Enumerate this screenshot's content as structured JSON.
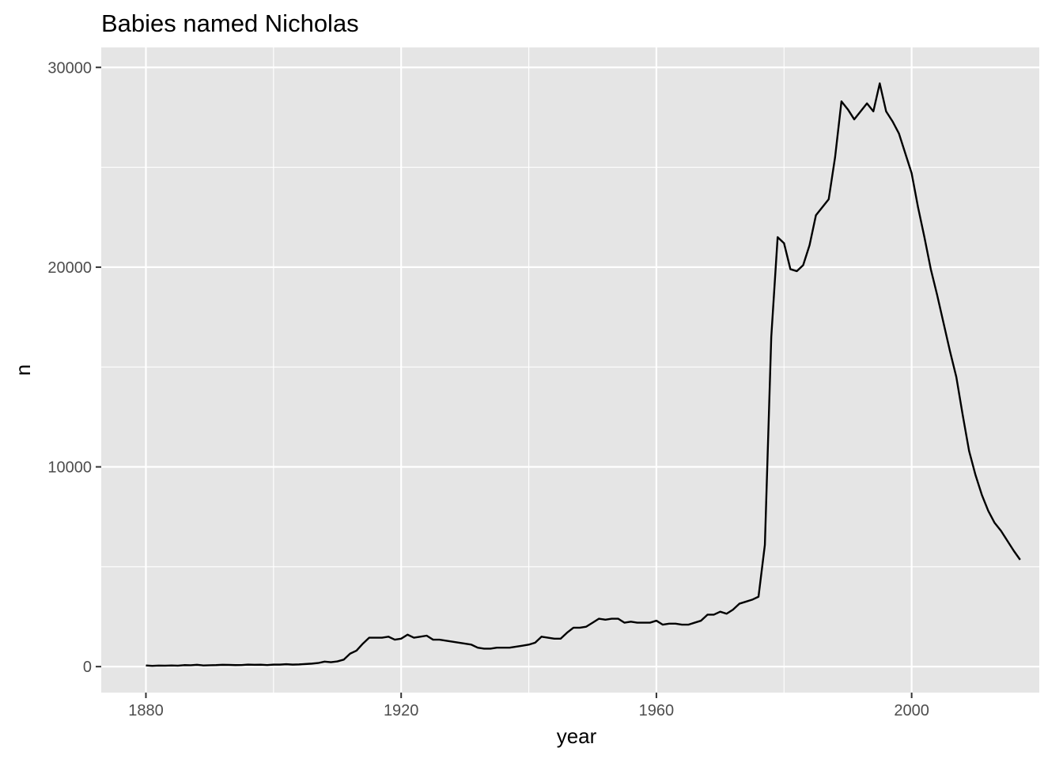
{
  "chart_data": {
    "type": "line",
    "title": "Babies named Nicholas",
    "xlabel": "year",
    "ylabel": "n",
    "xlim": [
      1873,
      2020
    ],
    "ylim": [
      -1300,
      31000
    ],
    "x_ticks": [
      1880,
      1920,
      1960,
      2000
    ],
    "y_ticks": [
      0,
      10000,
      20000,
      30000
    ],
    "x_tick_labels": [
      "1880",
      "1920",
      "1960",
      "2000"
    ],
    "y_tick_labels": [
      "0",
      "10000",
      "20000",
      "30000"
    ],
    "grid": true,
    "legend": "none",
    "colors": {
      "panel": "#e5e5e5",
      "grid": "#ffffff",
      "line": "#000000",
      "tick": "#333333"
    },
    "series": [
      {
        "x": [
          1880,
          1881,
          1882,
          1883,
          1884,
          1885,
          1886,
          1887,
          1888,
          1889,
          1890,
          1891,
          1892,
          1893,
          1894,
          1895,
          1896,
          1897,
          1898,
          1899,
          1900,
          1901,
          1902,
          1903,
          1904,
          1905,
          1906,
          1907,
          1908,
          1909,
          1910,
          1911,
          1912,
          1913,
          1914,
          1915,
          1916,
          1917,
          1918,
          1919,
          1920,
          1921,
          1922,
          1923,
          1924,
          1925,
          1926,
          1927,
          1928,
          1929,
          1930,
          1931,
          1932,
          1933,
          1934,
          1935,
          1936,
          1937,
          1938,
          1939,
          1940,
          1941,
          1942,
          1943,
          1944,
          1945,
          1946,
          1947,
          1948,
          1949,
          1950,
          1951,
          1952,
          1953,
          1954,
          1955,
          1956,
          1957,
          1958,
          1959,
          1960,
          1961,
          1962,
          1963,
          1964,
          1965,
          1966,
          1967,
          1968,
          1969,
          1970,
          1971,
          1972,
          1973,
          1974,
          1975,
          1976,
          1977,
          1978,
          1979,
          1980,
          1981,
          1982,
          1983,
          1984,
          1985,
          1986,
          1987,
          1988,
          1989,
          1990,
          1991,
          1992,
          1993,
          1994,
          1995,
          1996,
          1997,
          1998,
          1999,
          2000,
          2001,
          2002,
          2003,
          2004,
          2005,
          2006,
          2007,
          2008,
          2009,
          2010,
          2011,
          2012,
          2013,
          2014,
          2015,
          2016,
          2017
        ],
        "y": [
          60,
          40,
          55,
          50,
          60,
          50,
          75,
          70,
          90,
          60,
          70,
          75,
          90,
          85,
          75,
          80,
          100,
          90,
          95,
          80,
          100,
          100,
          120,
          100,
          110,
          130,
          150,
          180,
          250,
          220,
          260,
          350,
          650,
          800,
          1150,
          1450,
          1450,
          1450,
          1500,
          1350,
          1400,
          1600,
          1450,
          1500,
          1550,
          1350,
          1350,
          1300,
          1250,
          1200,
          1150,
          1100,
          950,
          900,
          900,
          950,
          950,
          950,
          1000,
          1050,
          1100,
          1200,
          1500,
          1450,
          1400,
          1400,
          1700,
          1950,
          1950,
          2000,
          2200,
          2400,
          2350,
          2400,
          2400,
          2200,
          2250,
          2200,
          2200,
          2200,
          2300,
          2100,
          2150,
          2150,
          2100,
          2100,
          2200,
          2300,
          2600,
          2600,
          2750,
          2650,
          2850,
          3150,
          3250,
          3350,
          3500,
          6100,
          16500,
          21500,
          21200,
          19900,
          19800,
          20100,
          21100,
          22600,
          23000,
          23400,
          25500,
          28300,
          27900,
          27400,
          27800,
          28200,
          27800,
          29200,
          27800,
          27300,
          26700,
          25700,
          24700,
          23000,
          21500,
          19900,
          18600,
          17200,
          15800,
          14500,
          12600,
          10800,
          9600,
          8600,
          7800,
          7200,
          6800,
          6300,
          5800,
          5350
        ]
      }
    ]
  }
}
